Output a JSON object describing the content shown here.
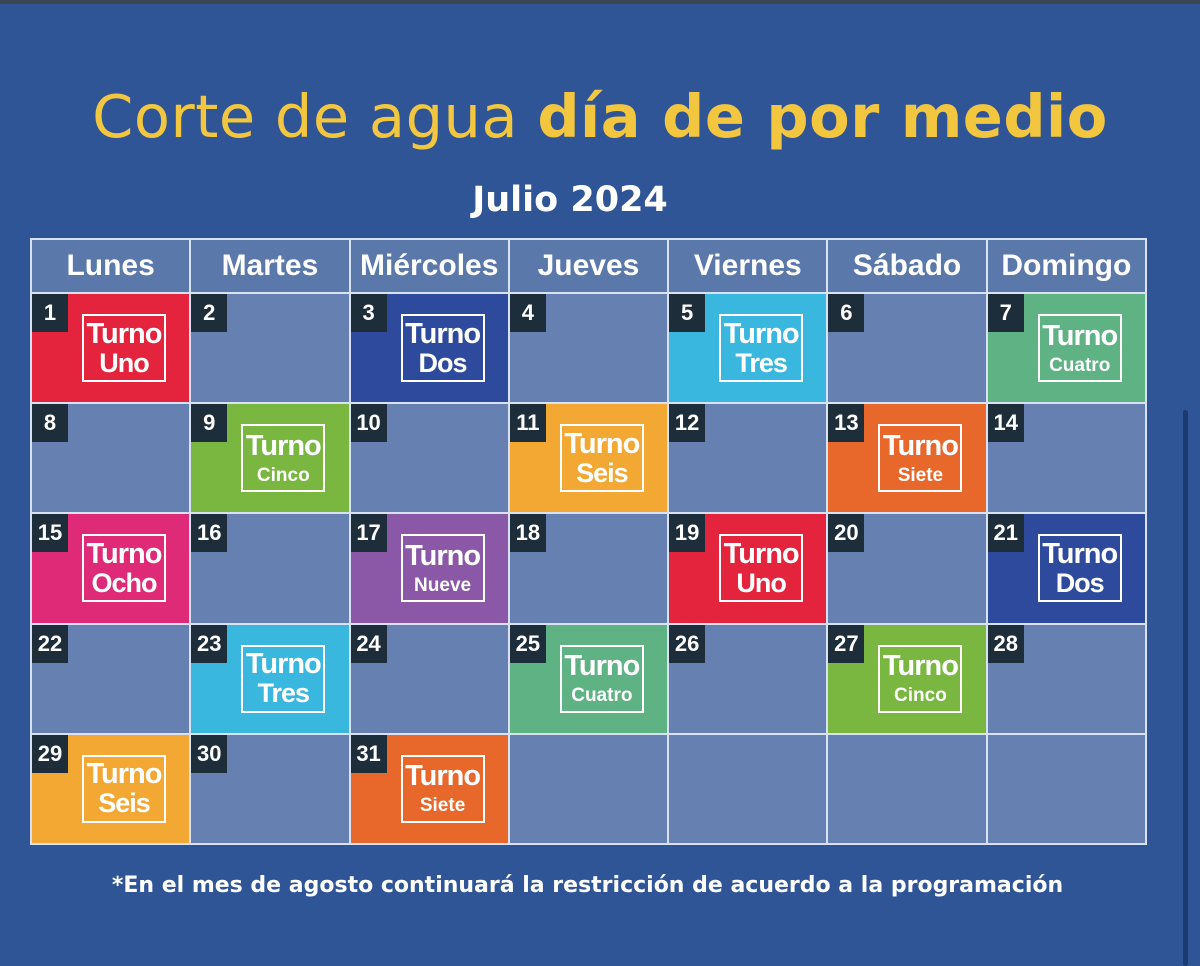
{
  "header": {
    "title_regular": "Corte de agua ",
    "title_bold": "día de por medio",
    "subtitle": "Julio 2024"
  },
  "calendar": {
    "days_of_week": [
      "Lunes",
      "Martes",
      "Miércoles",
      "Jueves",
      "Viernes",
      "Sábado",
      "Domingo"
    ],
    "turno_word": "Turno",
    "weeks": [
      [
        {
          "day": "1",
          "shift": "Uno",
          "color": "#e3243c"
        },
        {
          "day": "2"
        },
        {
          "day": "3",
          "shift": "Dos",
          "color": "#2e4a9c"
        },
        {
          "day": "4"
        },
        {
          "day": "5",
          "shift": "Tres",
          "color": "#3ab7de"
        },
        {
          "day": "6"
        },
        {
          "day": "7",
          "shift": "Cuatro",
          "color": "#5fb283"
        }
      ],
      [
        {
          "day": "8"
        },
        {
          "day": "9",
          "shift": "Cinco",
          "color": "#79b740"
        },
        {
          "day": "10"
        },
        {
          "day": "11",
          "shift": "Seis",
          "color": "#f3a833"
        },
        {
          "day": "12"
        },
        {
          "day": "13",
          "shift": "Siete",
          "color": "#e8672a"
        },
        {
          "day": "14"
        }
      ],
      [
        {
          "day": "15",
          "shift": "Ocho",
          "color": "#df2a77"
        },
        {
          "day": "16"
        },
        {
          "day": "17",
          "shift": "Nueve",
          "color": "#8a58a6"
        },
        {
          "day": "18"
        },
        {
          "day": "19",
          "shift": "Uno",
          "color": "#e3243c"
        },
        {
          "day": "20"
        },
        {
          "day": "21",
          "shift": "Dos",
          "color": "#2e4a9c"
        }
      ],
      [
        {
          "day": "22"
        },
        {
          "day": "23",
          "shift": "Tres",
          "color": "#3ab7de"
        },
        {
          "day": "24"
        },
        {
          "day": "25",
          "shift": "Cuatro",
          "color": "#5fb283"
        },
        {
          "day": "26"
        },
        {
          "day": "27",
          "shift": "Cinco",
          "color": "#79b740"
        },
        {
          "day": "28"
        }
      ],
      [
        {
          "day": "29",
          "shift": "Seis",
          "color": "#f3a833"
        },
        {
          "day": "30"
        },
        {
          "day": "31",
          "shift": "Siete",
          "color": "#e8672a"
        },
        {},
        {},
        {},
        {}
      ]
    ]
  },
  "footnote": "*En el mes de agosto continuará la restricción de acuerdo a la programación"
}
